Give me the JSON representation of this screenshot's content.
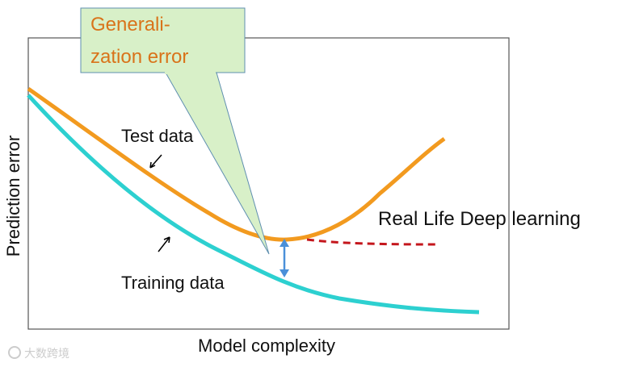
{
  "callout": {
    "lines": [
      "Generali-",
      "zation error"
    ]
  },
  "labels": {
    "test": "Test data",
    "training": "Training data",
    "real_life": "Real Life Deep learning"
  },
  "axes": {
    "y_label": "Prediction error",
    "x_label": "Model complexity"
  },
  "watermark": "大数跨境"
}
